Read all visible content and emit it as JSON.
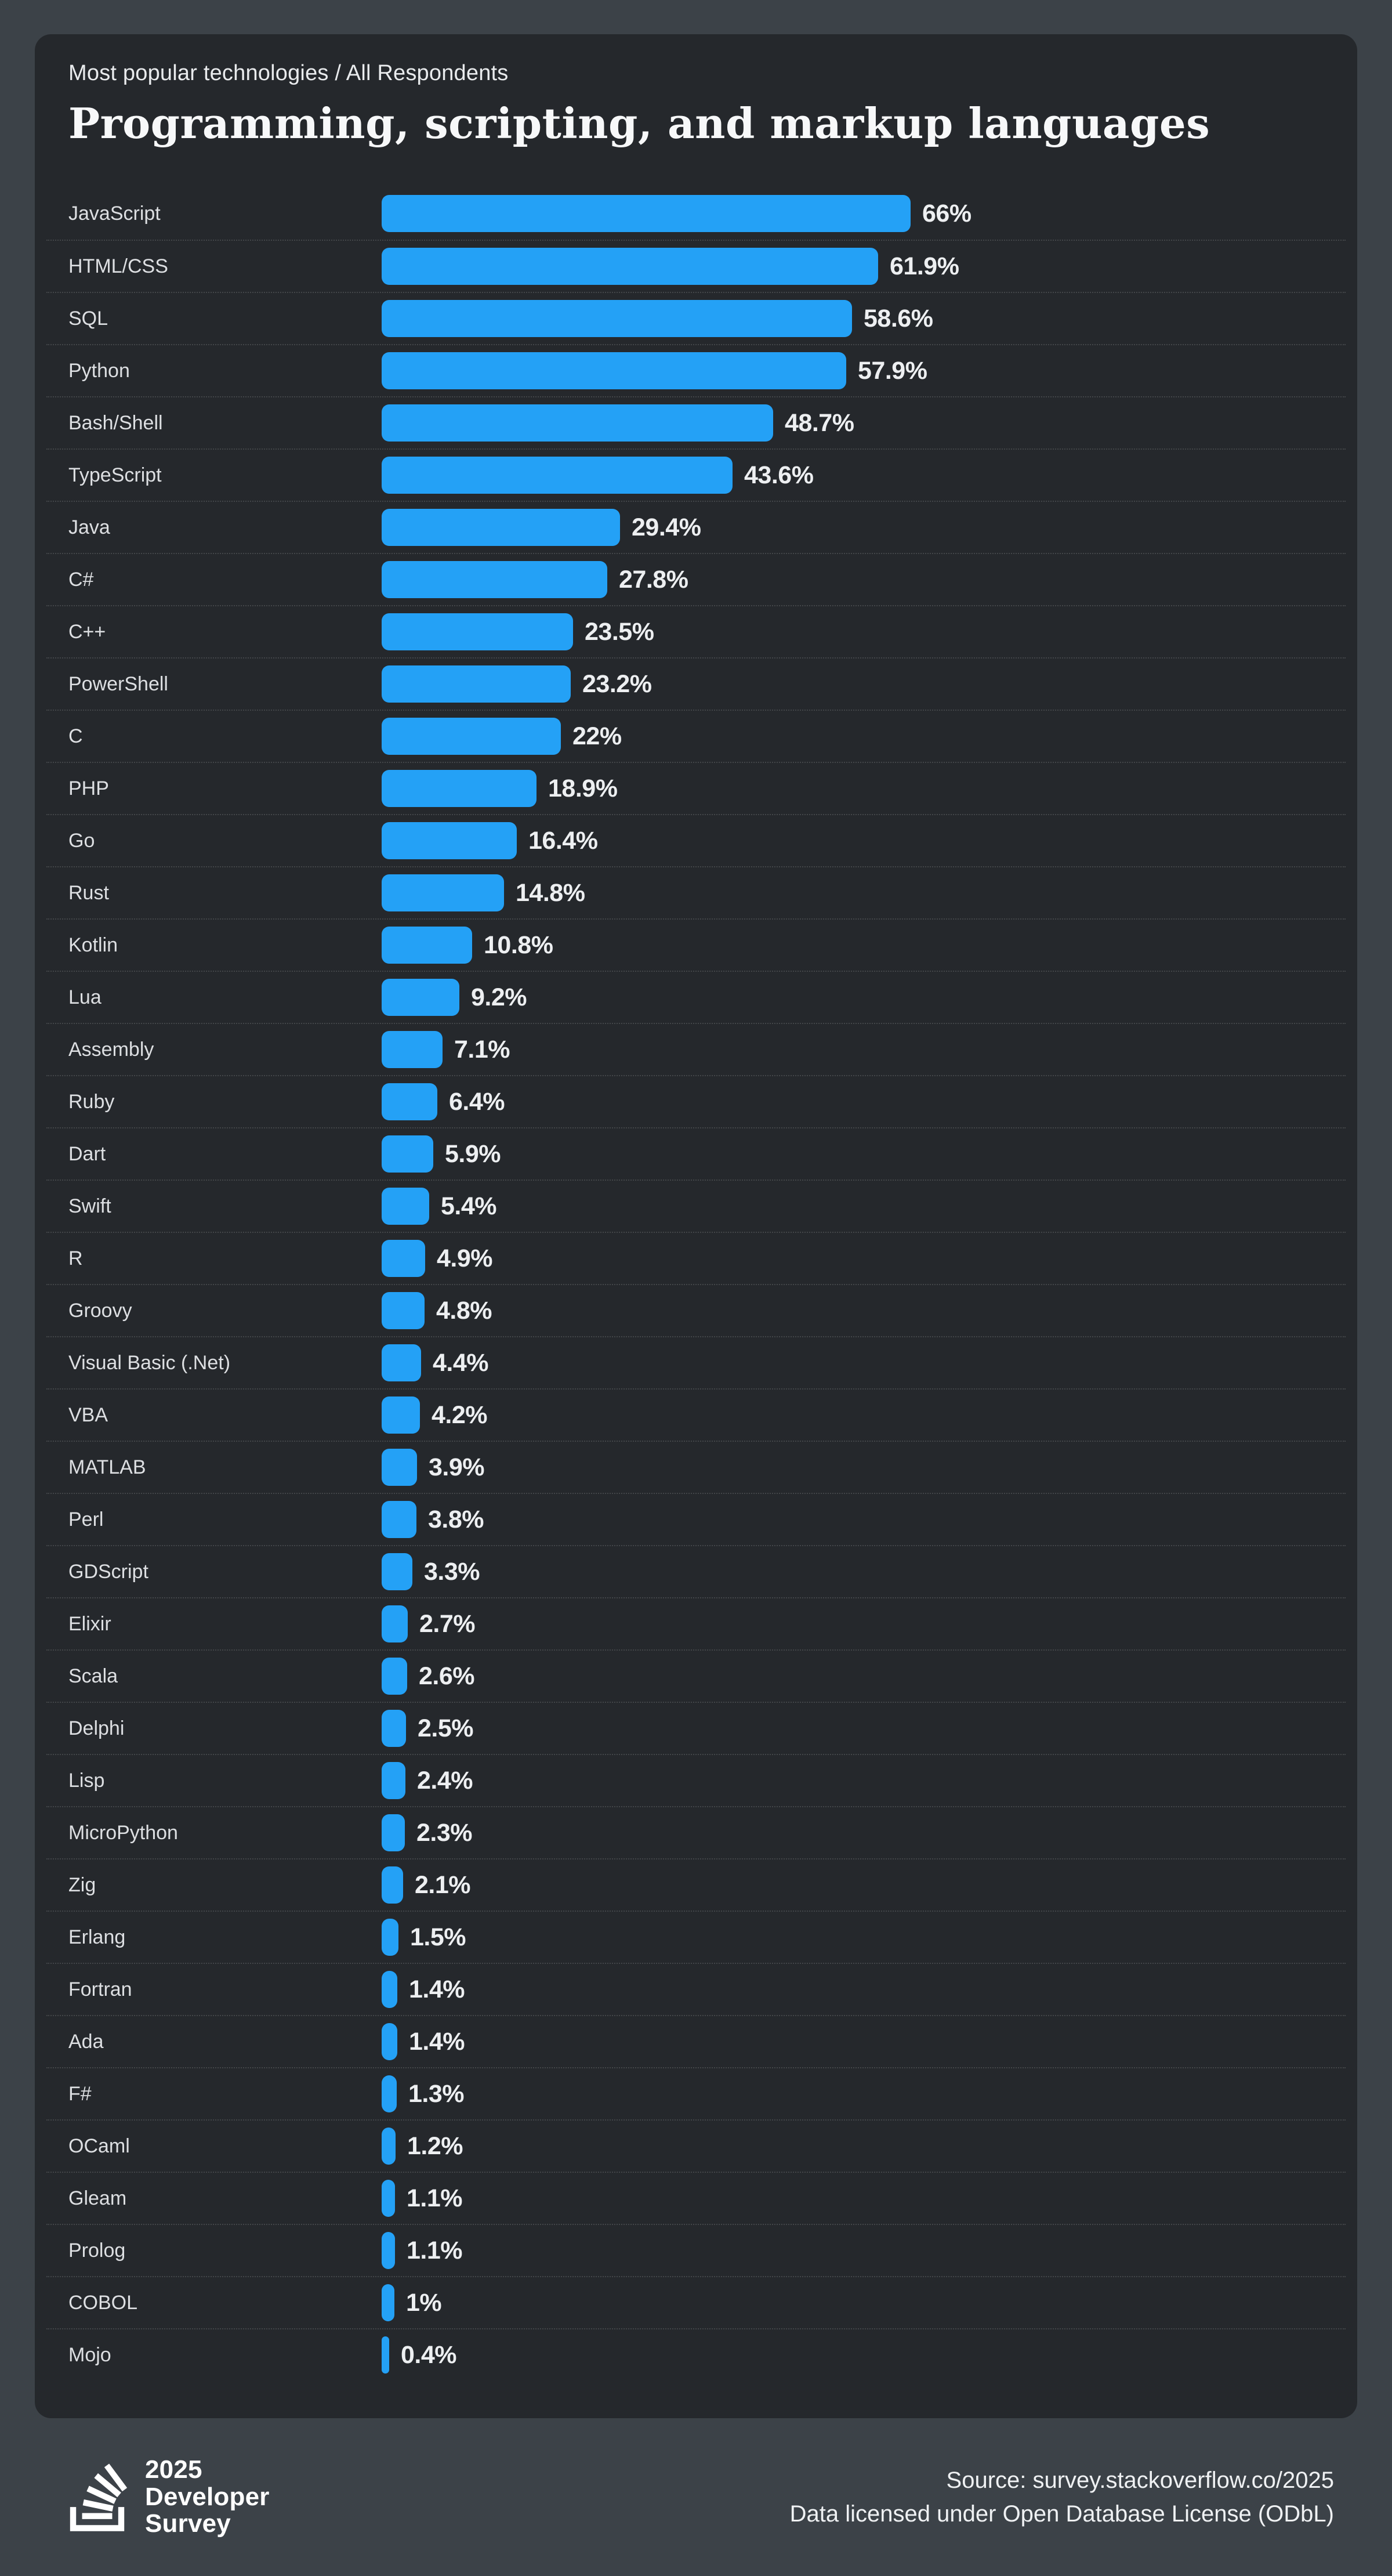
{
  "header": {
    "eyebrow": "Most popular technologies / All Respondents",
    "title": "Programming, scripting, and markup languages"
  },
  "chart_data": {
    "type": "bar",
    "orientation": "horizontal",
    "value_unit": "%",
    "xlim": [
      0,
      100
    ],
    "grid": false,
    "legend": "none",
    "title": "Programming, scripting, and markup languages",
    "subtitle": "Most popular technologies / All Respondents",
    "bar_color": "#24a1f6",
    "categories": [
      "JavaScript",
      "HTML/CSS",
      "SQL",
      "Python",
      "Bash/Shell",
      "TypeScript",
      "Java",
      "C#",
      "C++",
      "PowerShell",
      "C",
      "PHP",
      "Go",
      "Rust",
      "Kotlin",
      "Lua",
      "Assembly",
      "Ruby",
      "Dart",
      "Swift",
      "R",
      "Groovy",
      "Visual Basic (.Net)",
      "VBA",
      "MATLAB",
      "Perl",
      "GDScript",
      "Elixir",
      "Scala",
      "Delphi",
      "Lisp",
      "MicroPython",
      "Zig",
      "Erlang",
      "Fortran",
      "Ada",
      "F#",
      "OCaml",
      "Gleam",
      "Prolog",
      "COBOL",
      "Mojo"
    ],
    "values": [
      66,
      61.9,
      58.6,
      57.9,
      48.7,
      43.6,
      29.4,
      27.8,
      23.5,
      23.2,
      22,
      18.9,
      16.4,
      14.8,
      10.8,
      9.2,
      7.1,
      6.4,
      5.9,
      5.4,
      4.9,
      4.8,
      4.4,
      4.2,
      3.9,
      3.8,
      3.3,
      2.7,
      2.6,
      2.5,
      2.4,
      2.3,
      2.1,
      1.5,
      1.4,
      1.4,
      1.3,
      1.2,
      1.1,
      1.1,
      1,
      0.4
    ],
    "value_labels": [
      "66%",
      "61.9%",
      "58.6%",
      "57.9%",
      "48.7%",
      "43.6%",
      "29.4%",
      "27.8%",
      "23.5%",
      "23.2%",
      "22%",
      "18.9%",
      "16.4%",
      "14.8%",
      "10.8%",
      "9.2%",
      "7.1%",
      "6.4%",
      "5.9%",
      "5.4%",
      "4.9%",
      "4.8%",
      "4.4%",
      "4.2%",
      "3.9%",
      "3.8%",
      "3.3%",
      "2.7%",
      "2.6%",
      "2.5%",
      "2.4%",
      "2.3%",
      "2.1%",
      "1.5%",
      "1.4%",
      "1.4%",
      "1.3%",
      "1.2%",
      "1.1%",
      "1.1%",
      "1%",
      "0.4%"
    ]
  },
  "footer": {
    "logo": {
      "icon": "stackoverflow-icon",
      "lines": [
        "2025",
        "Developer",
        "Survey"
      ]
    },
    "source": "Source: survey.stackoverflow.co/2025",
    "license": "Data licensed under Open Database License (ODbL)"
  },
  "colors": {
    "page_bg": "#3c4248",
    "card_bg": "#25282c",
    "bar": "#24a1f6",
    "label": "#dddfe2",
    "value": "#edeff1",
    "separator": "rgba(255,255,255,0.14)",
    "title": "#f7f8f9",
    "eyebrow": "#e9ebed",
    "footer_text": "#eff1f3"
  }
}
